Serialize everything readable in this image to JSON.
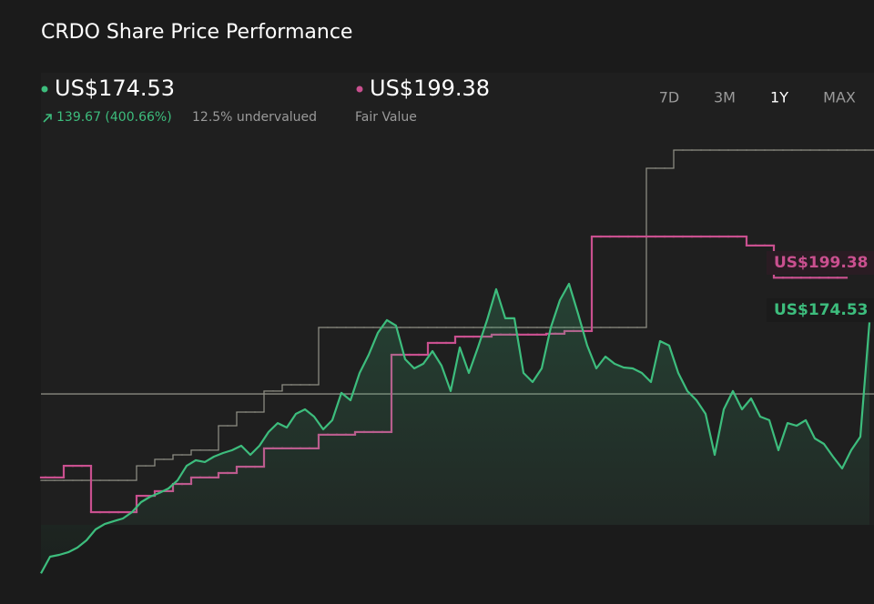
{
  "title": "CRDO Share Price Performance",
  "summary": {
    "price": "US$174.53",
    "change": "139.67 (400.66%)",
    "valuation": "12.5% undervalued",
    "fair_value": "US$199.38",
    "fair_value_label": "Fair Value"
  },
  "periods": {
    "options": [
      "7D",
      "3M",
      "1Y",
      "MAX"
    ],
    "active": 2
  },
  "chart_data": {
    "type": "line",
    "ylim": [
      35,
      278
    ],
    "reference_line": {
      "value": 134.7,
      "color": "#8a8a80"
    },
    "series": [
      {
        "color": "#3dbd7d",
        "fill": true,
        "label": "summary.price",
        "values": [
          34.86,
          44.1,
          45.1,
          46.6,
          49.2,
          53.2,
          59.3,
          62.3,
          63.9,
          65.4,
          68.9,
          74.5,
          77.5,
          79.6,
          82.1,
          86.6,
          94.7,
          97.8,
          96.8,
          99.8,
          101.8,
          103.4,
          105.9,
          100.8,
          105.9,
          113.5,
          118.5,
          116.0,
          123.6,
          126.1,
          122.1,
          115.0,
          120.1,
          135.3,
          131.2,
          146.4,
          156.5,
          168.7,
          175.8,
          172.7,
          154.0,
          148.9,
          151.5,
          158.5,
          150.4,
          136.3,
          160.6,
          146.4,
          160.6,
          175.8,
          193.0,
          176.8,
          176.8,
          146.4,
          141.3,
          148.9,
          171.7,
          186.9,
          196.0,
          179.3,
          161.6,
          148.9,
          155.5,
          151.5,
          149.4,
          148.9,
          146.4,
          141.3,
          164.1,
          161.6,
          146.4,
          136.3,
          131.2,
          123.6,
          100.8,
          126.1,
          136.3,
          126.1,
          132.2,
          122.1,
          120.1,
          103.4,
          118.5,
          117.0,
          120.1,
          109.9,
          106.9,
          99.8,
          93.2,
          103.4,
          110.9,
          174.53
        ]
      },
      {
        "color": "#c9508f",
        "step": true,
        "label": "summary.fair_value",
        "values": [
          88.2,
          88.2,
          88.2,
          94.7,
          94.7,
          94.7,
          68.9,
          68.9,
          68.9,
          68.9,
          68.9,
          78.0,
          78.0,
          80.6,
          80.6,
          84.6,
          84.6,
          88.2,
          88.2,
          88.2,
          90.7,
          90.7,
          94.2,
          94.2,
          94.2,
          104.4,
          104.4,
          104.4,
          104.4,
          104.4,
          104.4,
          112.0,
          112.0,
          112.0,
          112.0,
          113.5,
          113.5,
          113.5,
          113.5,
          156.5,
          156.5,
          156.5,
          156.5,
          163.1,
          163.1,
          163.1,
          166.6,
          166.6,
          166.6,
          166.6,
          167.7,
          167.7,
          167.7,
          167.7,
          167.7,
          167.7,
          168.2,
          168.2,
          169.7,
          169.7,
          169.7,
          222.3,
          222.3,
          222.3,
          222.3,
          222.3,
          222.3,
          222.3,
          222.3,
          222.3,
          222.3,
          222.3,
          222.3,
          222.3,
          222.3,
          222.3,
          222.3,
          222.3,
          217.3,
          217.3,
          217.3,
          199.38,
          199.38,
          199.38,
          199.38,
          199.38,
          199.38,
          199.38,
          199.38,
          null,
          null,
          null
        ]
      },
      {
        "color": "#8a8a80",
        "step": true,
        "values": [
          86.6,
          86.6,
          86.6,
          86.6,
          86.6,
          86.6,
          86.6,
          86.6,
          86.6,
          86.6,
          86.6,
          94.7,
          94.7,
          98.3,
          98.3,
          100.8,
          100.8,
          103.4,
          103.4,
          103.4,
          117.0,
          117.0,
          124.6,
          124.6,
          124.6,
          136.3,
          136.3,
          139.8,
          139.8,
          139.8,
          139.8,
          171.7,
          171.7,
          171.7,
          171.7,
          171.7,
          171.7,
          171.7,
          171.7,
          171.7,
          171.7,
          171.7,
          171.7,
          171.7,
          171.7,
          171.7,
          171.7,
          171.7,
          171.7,
          171.7,
          171.7,
          171.7,
          171.7,
          171.7,
          171.7,
          171.7,
          171.7,
          171.7,
          171.7,
          171.7,
          171.7,
          171.7,
          171.7,
          171.7,
          171.7,
          171.7,
          171.7,
          260.3,
          260.3,
          260.3,
          270.4,
          270.4,
          270.4,
          270.4,
          270.4,
          270.4,
          270.4,
          270.4,
          270.4,
          270.4,
          270.4,
          270.4,
          270.4,
          270.4,
          270.4,
          270.4,
          270.4,
          270.4,
          270.4,
          270.4,
          270.4,
          270.4
        ]
      }
    ]
  }
}
